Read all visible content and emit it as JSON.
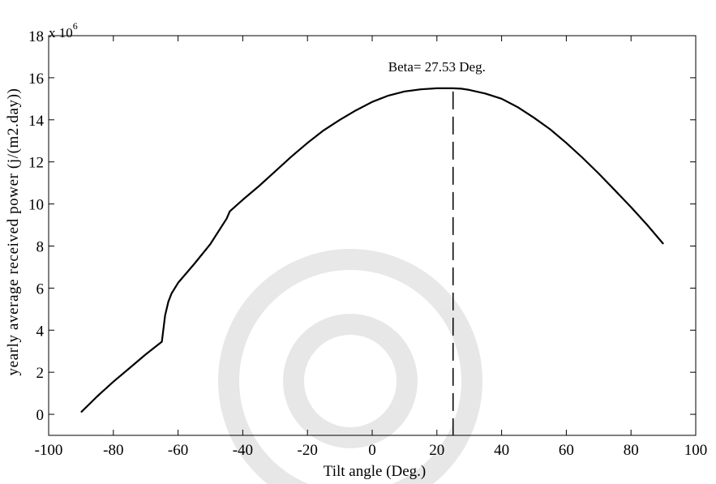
{
  "chart_data": {
    "type": "line",
    "title": "",
    "xlabel": "Tilt angle (Deg.)",
    "ylabel": "yearly average received power (j/(m2.day))",
    "xlim": [
      -100,
      100
    ],
    "ylim": [
      -1,
      18
    ],
    "xticks": [
      -100,
      -80,
      -60,
      -40,
      -20,
      0,
      20,
      40,
      60,
      80,
      100
    ],
    "yticks": [
      0,
      2,
      4,
      6,
      8,
      10,
      12,
      14,
      16,
      18
    ],
    "y_multiplier": {
      "base": "x 10",
      "exponent": "6"
    },
    "grid": false,
    "series": [
      {
        "x": [
          -90,
          -85,
          -80,
          -75,
          -70,
          -65,
          -64,
          -63,
          -62,
          -60,
          -55,
          -50,
          -45,
          -44,
          -40,
          -35,
          -30,
          -25,
          -20,
          -15,
          -10,
          -5,
          0,
          5,
          10,
          15,
          20,
          25,
          27.53,
          30,
          35,
          40,
          45,
          50,
          55,
          60,
          65,
          70,
          75,
          80,
          85,
          90
        ],
        "y": [
          0.1,
          0.85,
          1.55,
          2.2,
          2.85,
          3.45,
          4.7,
          5.35,
          5.75,
          6.25,
          7.15,
          8.1,
          9.3,
          9.65,
          10.2,
          10.85,
          11.55,
          12.25,
          12.9,
          13.5,
          14.0,
          14.45,
          14.85,
          15.15,
          15.35,
          15.45,
          15.5,
          15.5,
          15.48,
          15.42,
          15.25,
          15.0,
          14.6,
          14.1,
          13.55,
          12.9,
          12.2,
          11.45,
          10.65,
          9.85,
          9.0,
          8.1
        ]
      }
    ],
    "vline": {
      "x": 25,
      "style": "dashed"
    },
    "annotation": {
      "text": "Beta= 27.53 Deg.",
      "x": 20,
      "y": 16.3
    }
  }
}
